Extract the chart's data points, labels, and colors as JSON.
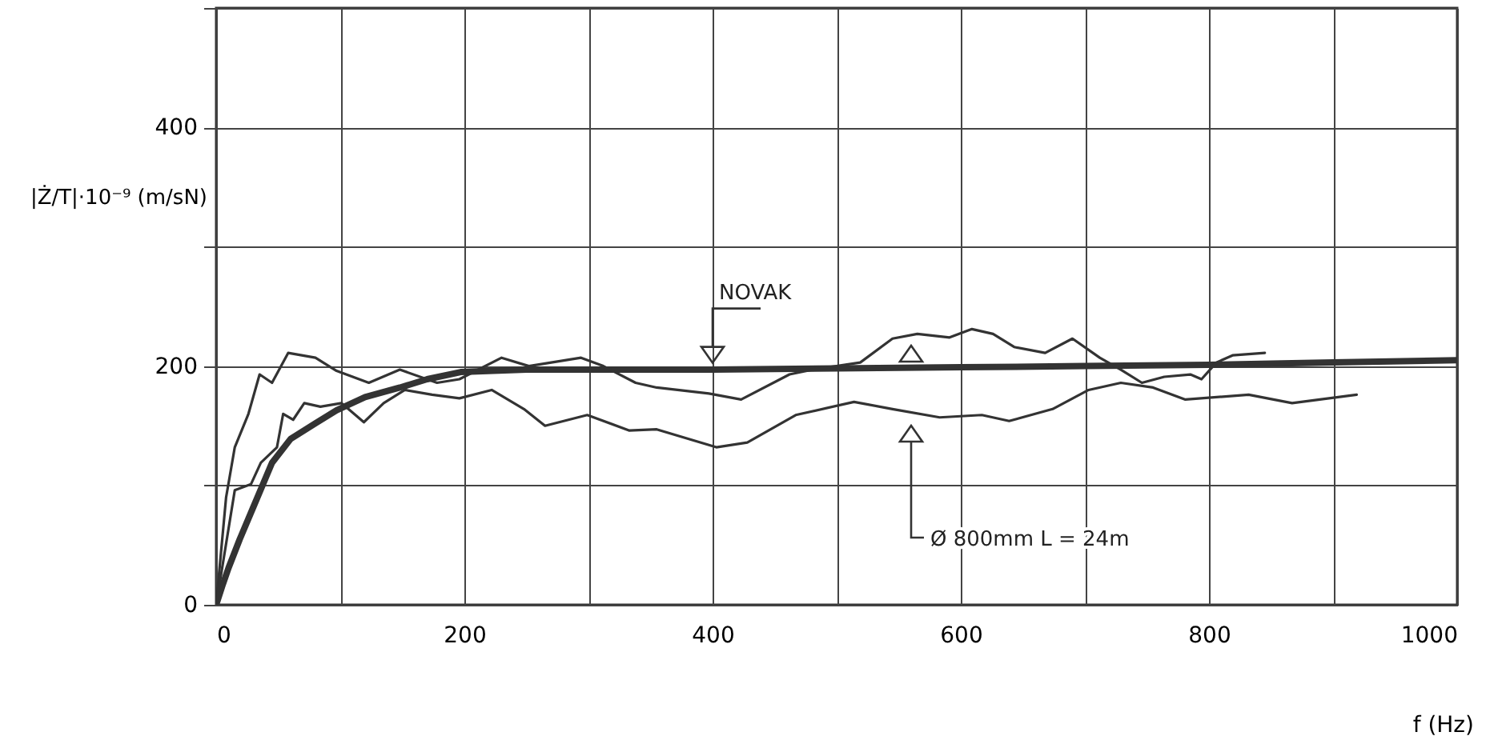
{
  "chart_data": {
    "type": "line",
    "ylabel": "|Ż/T|·10⁻⁹ (m/sN)",
    "xlabel": "f (Hz)",
    "xlim": [
      0,
      1000
    ],
    "xticks": [
      0,
      {
        "value": 100,
        "label": null
      },
      200,
      {
        "value": 300,
        "label": null
      },
      400,
      {
        "value": 500,
        "label": null
      },
      600,
      {
        "value": 700,
        "label": null
      },
      800,
      {
        "value": 900,
        "label": null
      },
      1000
    ],
    "ylim": [
      0,
      500
    ],
    "yticks": [
      0,
      {
        "value": 100,
        "label": null
      },
      200,
      {
        "value": 300,
        "label": null
      },
      400,
      {
        "value": 500,
        "label": null
      }
    ],
    "grid": true,
    "series": [
      {
        "color": "#333333",
        "x": [
          0,
          5,
          10,
          19,
          30,
          45,
          60,
          80,
          97,
          120,
          148,
          170,
          197,
          250,
          300,
          400,
          500,
          600,
          700,
          800,
          900,
          1000
        ],
        "values": [
          0,
          16,
          31,
          55,
          82,
          119,
          139,
          152,
          163,
          174,
          182,
          189,
          195,
          197,
          197,
          197,
          198,
          199,
          200,
          201,
          203,
          205
        ]
      },
      {
        "color": "#333333",
        "x": [
          0,
          8,
          15,
          26,
          35,
          45,
          58,
          80,
          97,
          123,
          148,
          178,
          196,
          230,
          252,
          294,
          312,
          338,
          355,
          397,
          423,
          462,
          480,
          519,
          545,
          565,
          591,
          609,
          626,
          643,
          668,
          690,
          712,
          729,
          746,
          764,
          785,
          794,
          806,
          819,
          845
        ],
        "values": [
          0,
          90,
          132,
          160,
          193,
          186,
          211,
          207,
          196,
          186,
          197,
          186,
          189,
          207,
          200,
          207,
          200,
          186,
          182,
          177,
          172,
          193,
          197,
          203,
          223,
          227,
          224,
          231,
          227,
          216,
          211,
          223,
          207,
          197,
          186,
          191,
          193,
          189,
          203,
          209,
          211
        ]
      },
      {
        "color": "#333333",
        "x": [
          0,
          15,
          28,
          36,
          49,
          54,
          62,
          71,
          84,
          101,
          119,
          135,
          152,
          174,
          196,
          222,
          248,
          265,
          299,
          333,
          355,
          403,
          428,
          467,
          514,
          545,
          583,
          617,
          639,
          674,
          703,
          729,
          755,
          781,
          832,
          867,
          919
        ],
        "values": [
          0,
          96,
          101,
          119,
          132,
          160,
          155,
          169,
          166,
          169,
          153,
          169,
          180,
          176,
          173,
          180,
          164,
          150,
          159,
          146,
          147,
          132,
          136,
          159,
          170,
          164,
          157,
          159,
          154,
          164,
          180,
          186,
          182,
          172,
          176,
          169,
          176
        ]
      }
    ],
    "annotations": [
      {
        "text": "NOVAK",
        "x": 400,
        "y": 200
      },
      "Ø 800mm  L = 24m"
    ]
  }
}
